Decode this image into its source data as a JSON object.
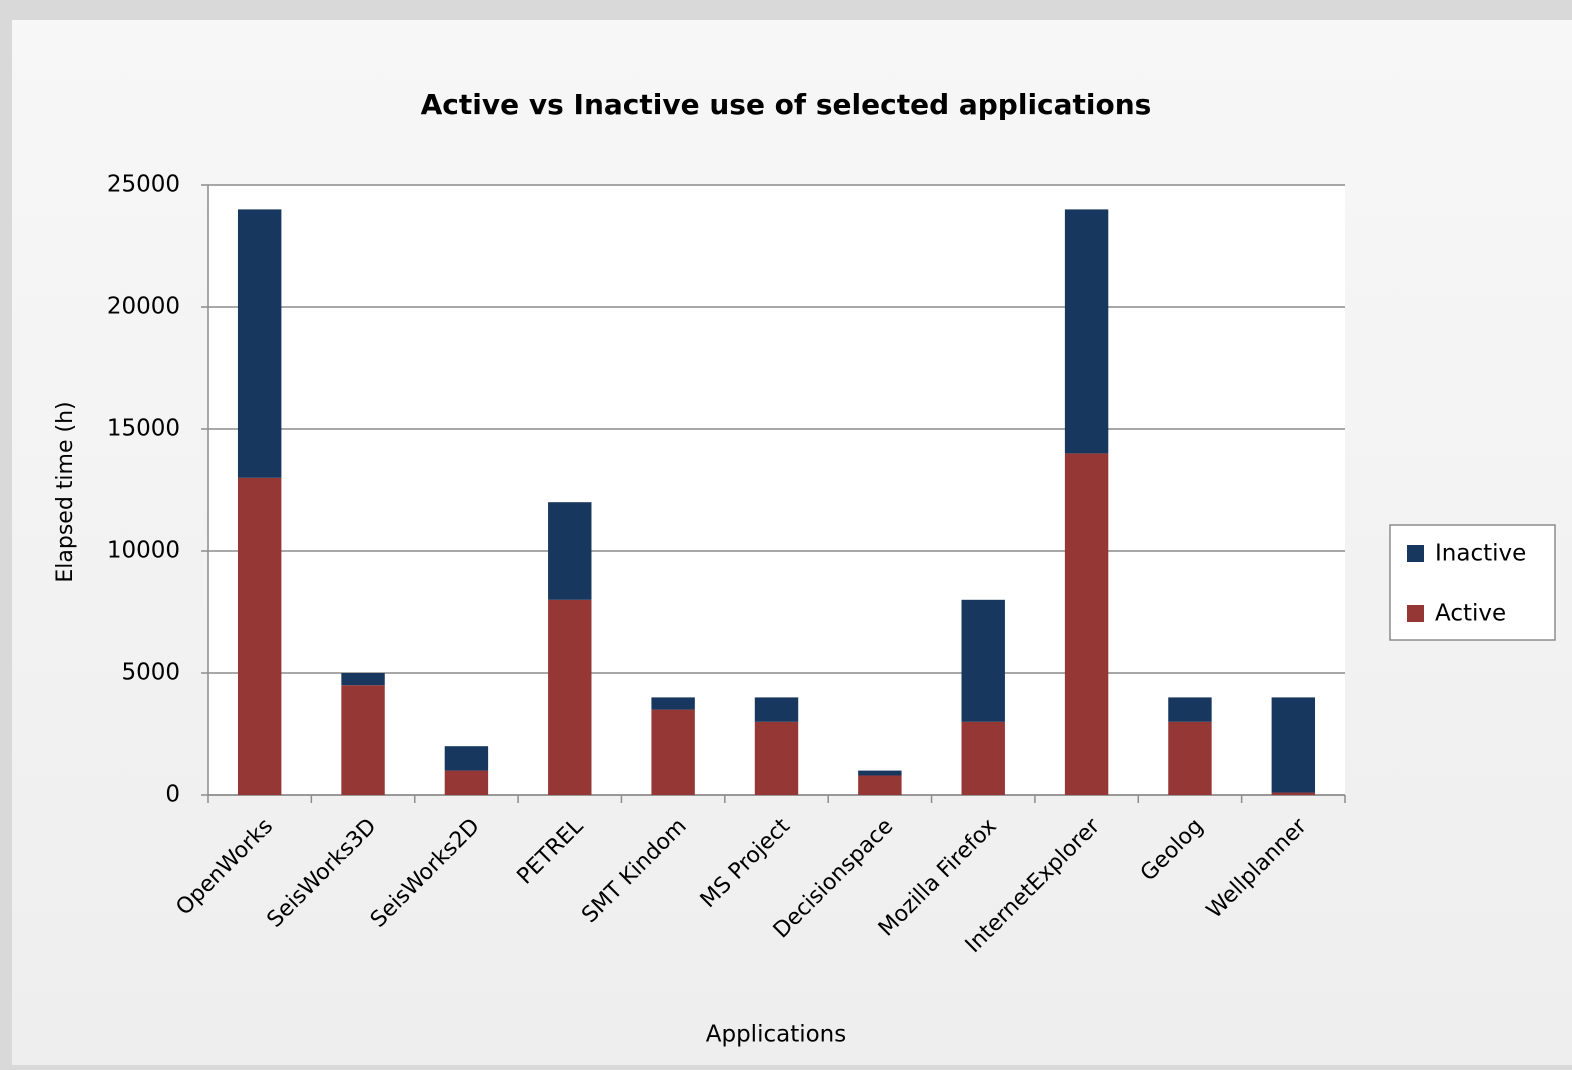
{
  "chart_data": {
    "type": "stacked_bar",
    "title": "Active vs Inactive use of selected applications",
    "x_label": "Applications",
    "y_label": "Elapsed time (h)",
    "categories": [
      "OpenWorks",
      "SeisWorks3D",
      "SeisWorks2D",
      "PETREL",
      "SMT Kindom",
      "MS Project",
      "Decisionspace",
      "Mozilla Firefox",
      "InternetExplorer",
      "Geolog",
      "Wellplanner"
    ],
    "series": [
      {
        "name": "Active",
        "color": "#953735",
        "values": [
          13000,
          4500,
          1000,
          8000,
          3500,
          3000,
          800,
          3000,
          14000,
          3000,
          100
        ]
      },
      {
        "name": "Inactive",
        "color": "#17375e",
        "values": [
          11000,
          500,
          1000,
          4000,
          500,
          1000,
          200,
          5000,
          10000,
          1000,
          3900
        ]
      }
    ],
    "ylim": [
      0,
      25000
    ],
    "yticks": [
      0,
      5000,
      10000,
      15000,
      20000,
      25000
    ],
    "grid": true,
    "legend": "right"
  }
}
